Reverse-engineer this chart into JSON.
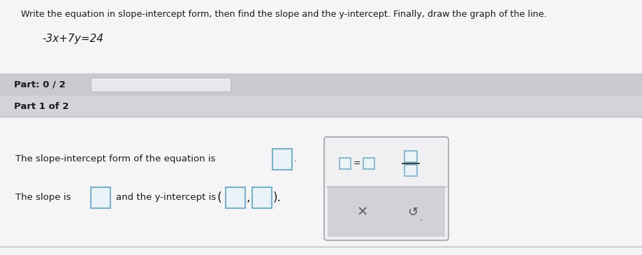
{
  "title_text": "Write the equation in slope-intercept form, then find the slope and the y-intercept. Finally, draw the graph of the line.",
  "equation": "-3x+7y=24",
  "part_progress": "Part: 0 / 2",
  "part_label": "Part 1 of 2",
  "line1_text": "The slope-intercept form of the equation is",
  "line2_text": "The slope is",
  "line2_mid": "and the y-intercept is",
  "bg_color": "#e8e8ec",
  "white": "#f5f5f7",
  "section_bg1": "#c8cad0",
  "section_bg2": "#d2d4d8",
  "text_color": "#1a1a1a",
  "progress_bar_color": "#e8e8ec",
  "input_box_color": "#eaf3f8",
  "input_box_border": "#7ab0c8",
  "popup_bg": "#e8e8ec",
  "popup_bg_top": "#f0f0f2",
  "popup_bg_bottom": "#d0d2d6",
  "popup_border": "#b0b2b8",
  "title_fontsize": 9.2,
  "body_fontsize": 9.5
}
